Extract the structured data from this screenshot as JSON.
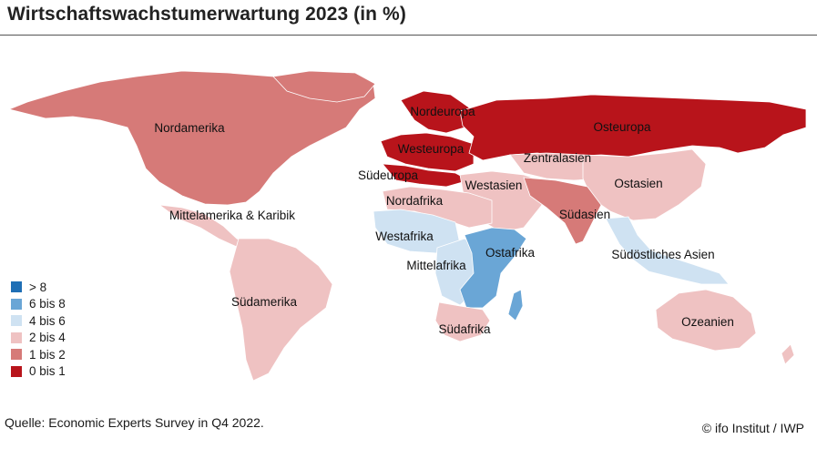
{
  "title": "Wirtschaftswachstumerwartung 2023 (in %)",
  "source": "Quelle: Economic Experts Survey in Q4 2022.",
  "credit": "© ifo Institut / IWP",
  "colors": {
    "gt8": "#1f6fb5",
    "c6_8": "#6aa6d6",
    "c4_6": "#cfe2f2",
    "c2_4": "#efc2c2",
    "c1_2": "#d67a78",
    "c0_1": "#b8141b"
  },
  "legend": [
    {
      "label": "> 8",
      "color_key": "gt8"
    },
    {
      "label": "6 bis 8",
      "color_key": "c6_8"
    },
    {
      "label": "4 bis 6",
      "color_key": "c4_6"
    },
    {
      "label": "2 bis 4",
      "color_key": "c2_4"
    },
    {
      "label": "1 bis 2",
      "color_key": "c1_2"
    },
    {
      "label": "0 bis 1",
      "color_key": "c0_1"
    }
  ],
  "regions": {
    "nordamerika": {
      "label": "Nordamerika",
      "class": "1 bis 2"
    },
    "mittelamerika": {
      "label": "Mittelamerika & Karibik",
      "class": "2 bis 4"
    },
    "suedamerika": {
      "label": "Südamerika",
      "class": "2 bis 4"
    },
    "nordeuropa": {
      "label": "Nordeuropa",
      "class": "0 bis 1"
    },
    "westeuropa": {
      "label": "Westeuropa",
      "class": "0 bis 1"
    },
    "suedeuropa": {
      "label": "Südeuropa",
      "class": "0 bis 1"
    },
    "osteuropa": {
      "label": "Osteuropa",
      "class": "0 bis 1"
    },
    "zentralasien": {
      "label": "Zentralasien",
      "class": "2 bis 4"
    },
    "westasien": {
      "label": "Westasien",
      "class": "2 bis 4"
    },
    "ostasien": {
      "label": "Ostasien",
      "class": "2 bis 4"
    },
    "suedasien": {
      "label": "Südasien",
      "class": "1 bis 2"
    },
    "suedostasien": {
      "label": "Südöstliches Asien",
      "class": "4 bis 6"
    },
    "nordafrika": {
      "label": "Nordafrika",
      "class": "2 bis 4"
    },
    "westafrika": {
      "label": "Westafrika",
      "class": "4 bis 6"
    },
    "mittelafrika": {
      "label": "Mittelafrika",
      "class": "4 bis 6"
    },
    "ostafrika": {
      "label": "Ostafrika",
      "class": "6 bis 8"
    },
    "suedafrika": {
      "label": "Südafrika",
      "class": "2 bis 4"
    },
    "ozeanien": {
      "label": "Ozeanien",
      "class": "2 bis 4"
    }
  }
}
